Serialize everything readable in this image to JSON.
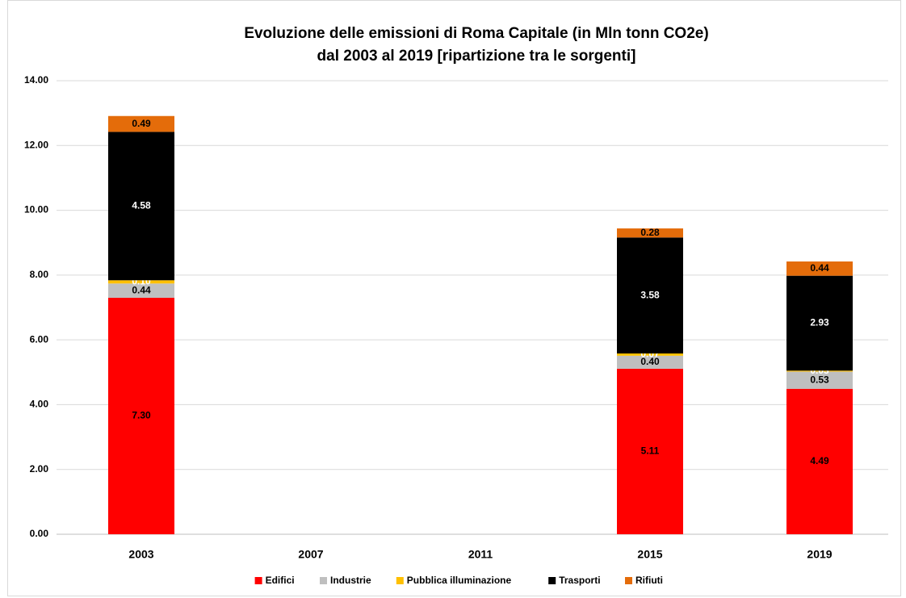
{
  "chart_data": {
    "type": "stacked_bar",
    "title": "Evoluzione delle emissioni di Roma Capitale (in Mln tonn CO2e)",
    "subtitle": "dal 2003 al 2019 [ripartizione tra le sorgenti]",
    "categories": [
      "2003",
      "2007",
      "2011",
      "2015",
      "2019"
    ],
    "series": [
      {
        "name": "Edifici",
        "color": "#ff0000",
        "label_color": "#000000",
        "values": [
          7.3,
          null,
          null,
          5.11,
          4.49
        ],
        "value_labels": [
          "7.30",
          null,
          null,
          "5.11",
          "4.49"
        ]
      },
      {
        "name": "Industrie",
        "color": "#bfbfbf",
        "label_color": "#000000",
        "values": [
          0.44,
          null,
          null,
          0.4,
          0.53
        ],
        "value_labels": [
          "0.44",
          null,
          null,
          "0.40",
          "0.53"
        ]
      },
      {
        "name": "Pubblica illuminazione",
        "color": "#ffc000",
        "label_color": "#ffffff",
        "values": [
          0.1,
          null,
          null,
          0.07,
          0.03
        ],
        "value_labels": [
          "0.10",
          null,
          null,
          "0.07",
          "0.03"
        ]
      },
      {
        "name": "Trasporti",
        "color": "#000000",
        "label_color": "#ffffff",
        "values": [
          4.58,
          null,
          null,
          3.58,
          2.93
        ],
        "value_labels": [
          "4.58",
          null,
          null,
          "3.58",
          "2.93"
        ]
      },
      {
        "name": "Rifiuti",
        "color": "#e46c0a",
        "label_color": "#000000",
        "values": [
          0.49,
          null,
          null,
          0.28,
          0.44
        ],
        "value_labels": [
          "0.49",
          null,
          null,
          "0.28",
          "0.44"
        ]
      }
    ],
    "ylim": [
      0,
      14
    ],
    "yticks": [
      {
        "value": 0,
        "label": "0.00"
      },
      {
        "value": 2,
        "label": "2.00"
      },
      {
        "value": 4,
        "label": "4.00"
      },
      {
        "value": 6,
        "label": "6.00"
      },
      {
        "value": 8,
        "label": "8.00"
      },
      {
        "value": 10,
        "label": "10.00"
      },
      {
        "value": 12,
        "label": "12.00"
      },
      {
        "value": 14,
        "label": "14.00"
      }
    ],
    "grid": true,
    "legend": "bottom"
  }
}
